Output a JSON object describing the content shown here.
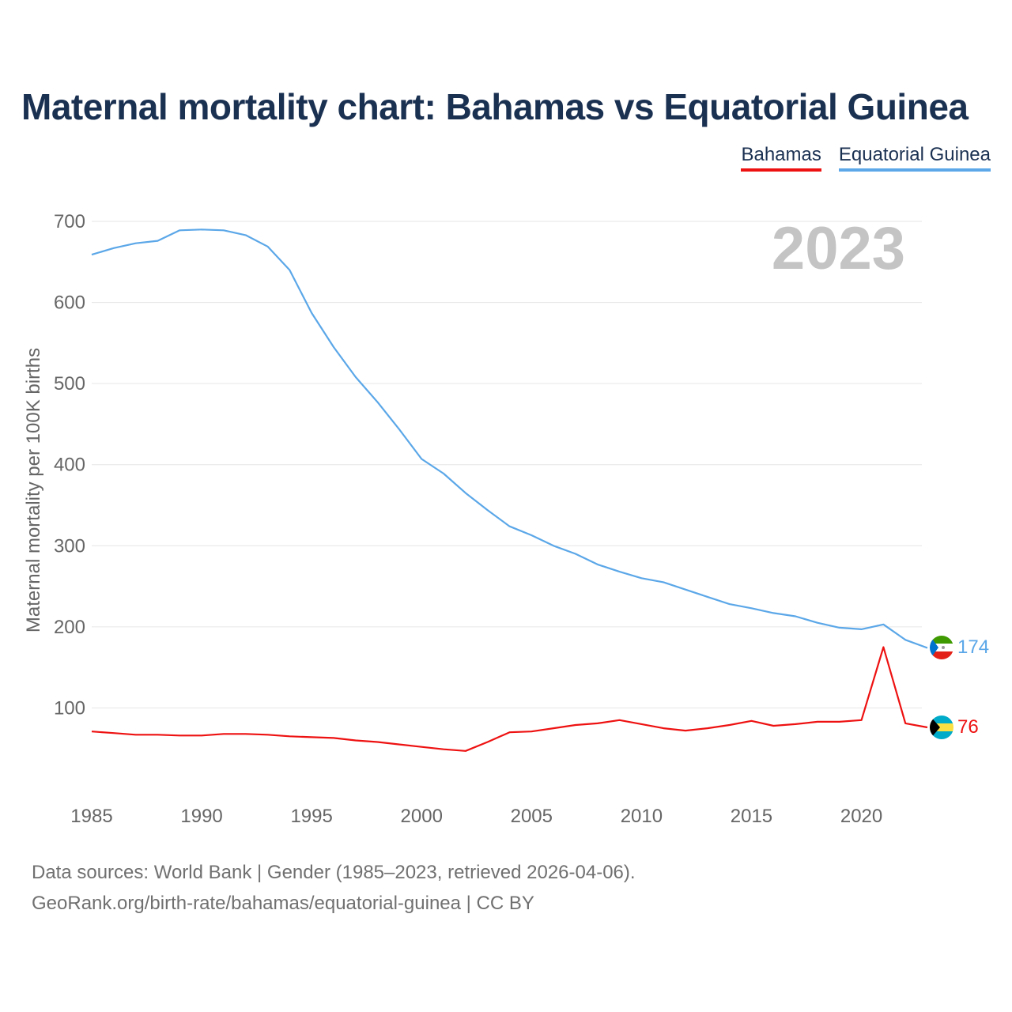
{
  "chart_data": {
    "type": "line",
    "title": "Maternal mortality chart: Bahamas vs Equatorial Guinea",
    "ylabel": "Maternal mortality per 100K births",
    "xlabel": "",
    "year_label": "2023",
    "x": [
      1985,
      1986,
      1987,
      1988,
      1989,
      1990,
      1991,
      1992,
      1993,
      1994,
      1995,
      1996,
      1997,
      1998,
      1999,
      2000,
      2001,
      2002,
      2003,
      2004,
      2005,
      2006,
      2007,
      2008,
      2009,
      2010,
      2011,
      2012,
      2013,
      2014,
      2015,
      2016,
      2017,
      2018,
      2019,
      2020,
      2021,
      2022,
      2023
    ],
    "xticks": [
      1985,
      1990,
      1995,
      2000,
      2005,
      2010,
      2015,
      2020
    ],
    "yticks": [
      100,
      200,
      300,
      400,
      500,
      600,
      700
    ],
    "xlim": [
      1985,
      2023
    ],
    "ylim": [
      0,
      700
    ],
    "series": [
      {
        "name": "Bahamas",
        "color": "#ee1111",
        "end_label": "76",
        "flag": "bahamas-flag-icon",
        "values": [
          71,
          69,
          67,
          67,
          66,
          66,
          68,
          68,
          67,
          65,
          64,
          63,
          60,
          58,
          55,
          52,
          49,
          47,
          58,
          70,
          71,
          75,
          79,
          81,
          85,
          80,
          75,
          72,
          75,
          79,
          84,
          78,
          80,
          83,
          83,
          85,
          175,
          81,
          76
        ]
      },
      {
        "name": "Equatorial Guinea",
        "color": "#5ba7e8",
        "end_label": "174",
        "flag": "equatorial-guinea-flag-icon",
        "values": [
          659,
          667,
          673,
          676,
          689,
          690,
          689,
          683,
          669,
          640,
          587,
          545,
          508,
          477,
          443,
          407,
          389,
          365,
          344,
          324,
          313,
          300,
          290,
          277,
          268,
          260,
          255,
          246,
          237,
          228,
          223,
          217,
          213,
          205,
          199,
          197,
          203,
          184,
          174
        ]
      }
    ],
    "legend": [
      "Bahamas",
      "Equatorial Guinea"
    ]
  },
  "footer": {
    "line1": "Data sources: World Bank | Gender (1985–2023, retrieved 2026-04-06).",
    "line2": "GeoRank.org/birth-rate/bahamas/equatorial-guinea | CC BY"
  }
}
